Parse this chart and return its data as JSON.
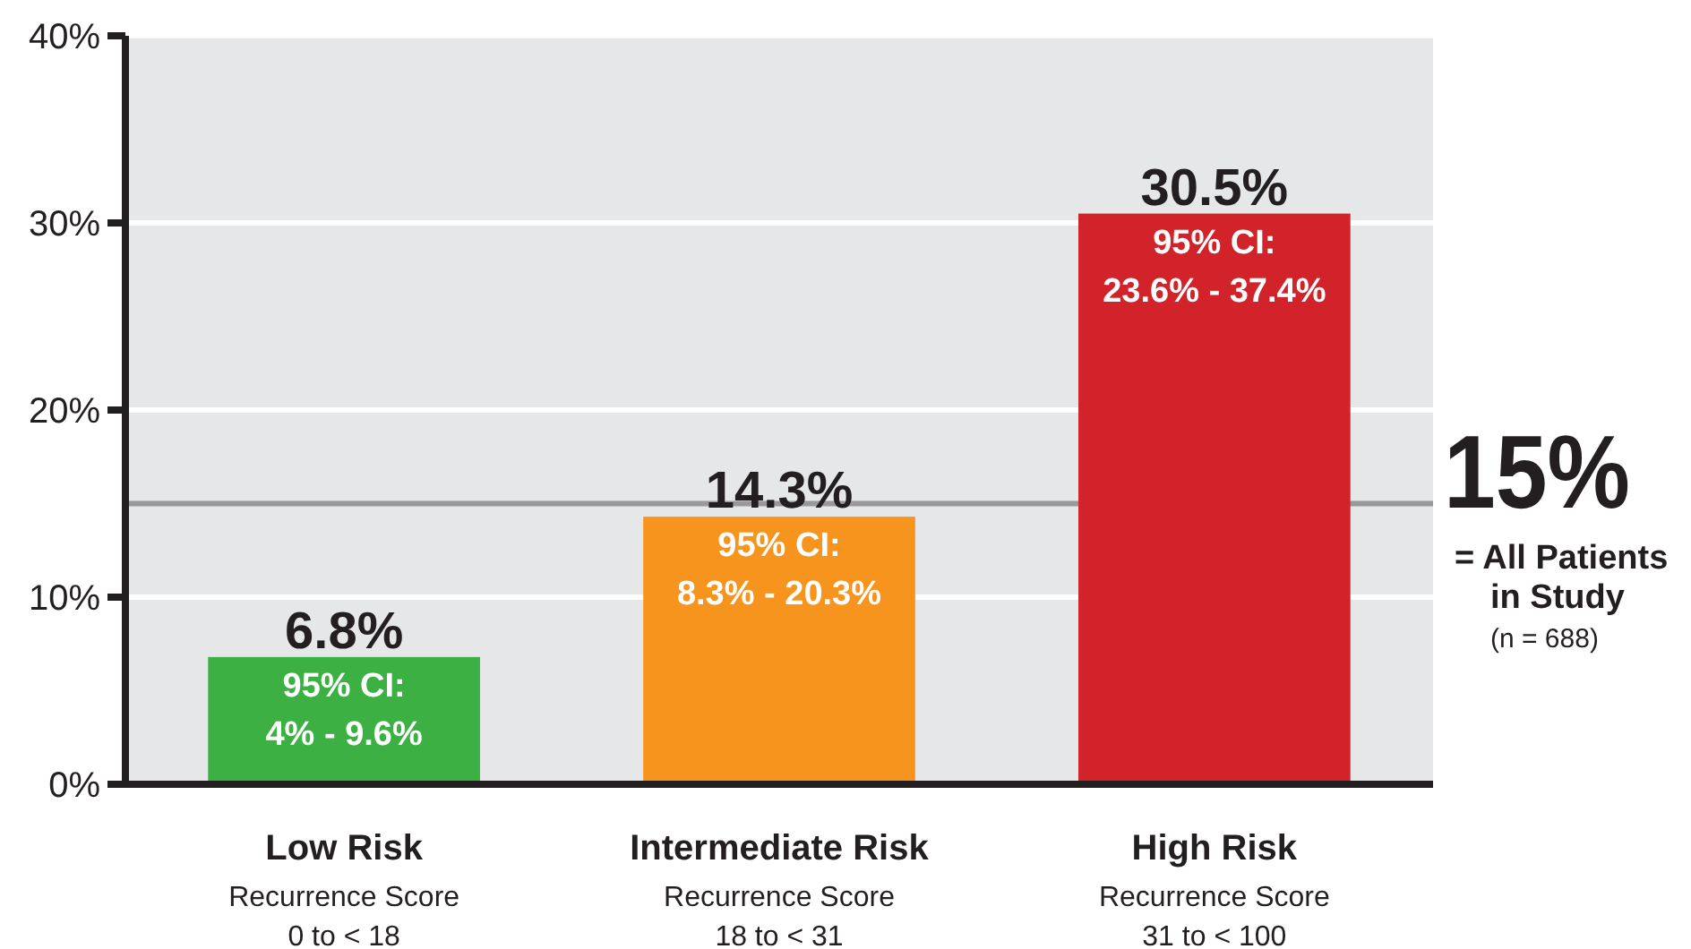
{
  "chart_data": {
    "type": "bar",
    "categories": [
      "Low Risk\nRecurrence Score\n0 to < 18",
      "Intermediate Risk\nRecurrence Score\n18 to < 31",
      "High Risk\nRecurrence Score\n31 to < 100"
    ],
    "values": [
      6.8,
      14.3,
      30.5
    ],
    "colors": [
      "#3cb043",
      "#f7941d",
      "#d2232a"
    ],
    "value_labels": [
      "6.8%",
      "14.3%",
      "30.5%"
    ],
    "ylim": [
      0,
      40
    ],
    "yticks": [
      {
        "value": 0,
        "label": "0%"
      },
      {
        "value": 10,
        "label": "10%"
      },
      {
        "value": 20,
        "label": "20%"
      },
      {
        "value": 30,
        "label": "30%"
      },
      {
        "value": 40,
        "label": "40%"
      }
    ],
    "grid": "y",
    "ref_lines": [
      {
        "axis": "y",
        "value": 15,
        "label": "15%\n= All Patients\nin Study\n(n = 688)",
        "color": "#999999"
      }
    ],
    "annotations": [
      {
        "text": "95% CI:\n4% - 9.6%",
        "x": "Low Risk\nRecurrence Score\n0 to < 18",
        "y": 6.8
      },
      {
        "text": "95% CI:\n8.3% - 20.3%",
        "x": "Intermediate Risk\nRecurrence Score\n18 to < 31",
        "y": 14.3
      },
      {
        "text": "95% CI:\n23.6% - 37.4%",
        "x": "High Risk\nRecurrence Score\n31 to < 100",
        "y": 30.5
      }
    ]
  }
}
